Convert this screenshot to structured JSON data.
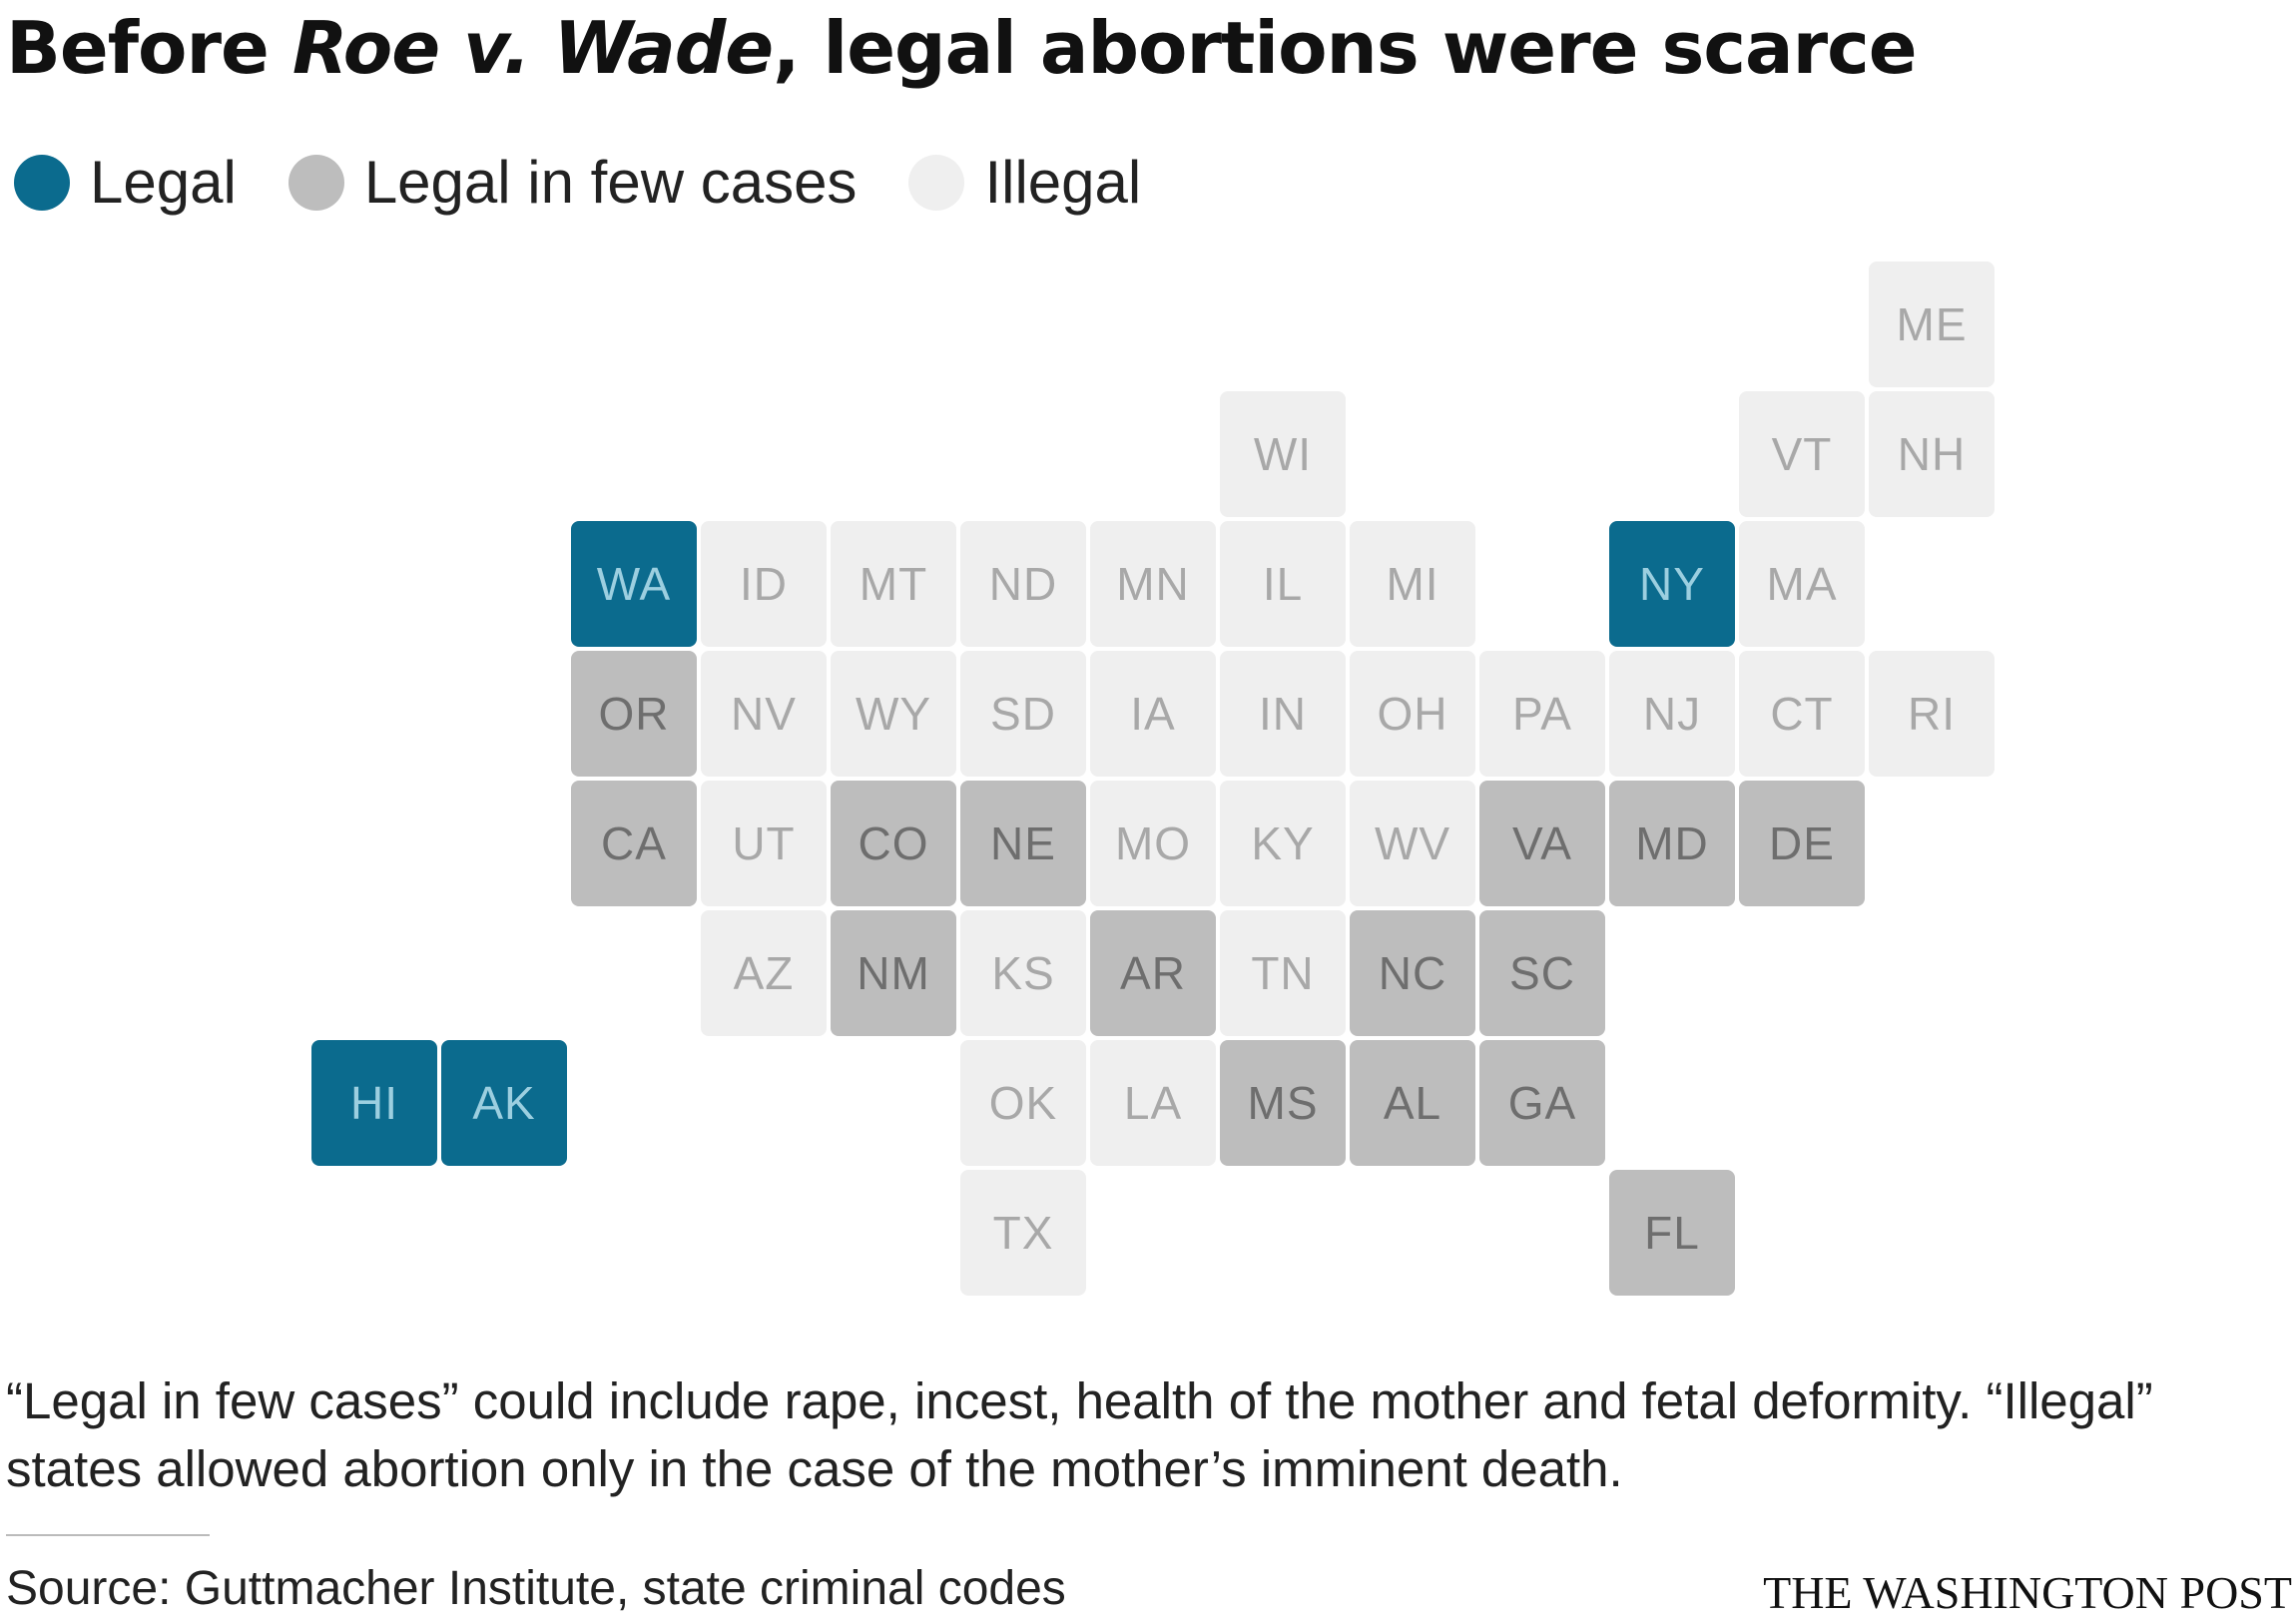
{
  "title": {
    "before": "Before ",
    "case_name": "Roe v. Wade",
    "after": ", legal abortions were scarce"
  },
  "legend": [
    {
      "key": "legal",
      "label": "Legal",
      "color": "#0b6b8e"
    },
    {
      "key": "few",
      "label": "Legal in few cases",
      "color": "#bdbdbd"
    },
    {
      "key": "illegal",
      "label": "Illegal",
      "color": "#efefef"
    }
  ],
  "status_colors": {
    "legal": {
      "fill": "#0b6b8e",
      "text": "#9ccfe0"
    },
    "few": {
      "fill": "#bdbdbd",
      "text": "#6e6e6e"
    },
    "illegal": {
      "fill": "#efefef",
      "text": "#a8a8a8"
    }
  },
  "states": [
    {
      "abbr": "ME",
      "row": 0,
      "col": 12,
      "status": "illegal"
    },
    {
      "abbr": "WI",
      "row": 1,
      "col": 7,
      "status": "illegal"
    },
    {
      "abbr": "VT",
      "row": 1,
      "col": 11,
      "status": "illegal"
    },
    {
      "abbr": "NH",
      "row": 1,
      "col": 12,
      "status": "illegal"
    },
    {
      "abbr": "WA",
      "row": 2,
      "col": 2,
      "status": "legal"
    },
    {
      "abbr": "ID",
      "row": 2,
      "col": 3,
      "status": "illegal"
    },
    {
      "abbr": "MT",
      "row": 2,
      "col": 4,
      "status": "illegal"
    },
    {
      "abbr": "ND",
      "row": 2,
      "col": 5,
      "status": "illegal"
    },
    {
      "abbr": "MN",
      "row": 2,
      "col": 6,
      "status": "illegal"
    },
    {
      "abbr": "IL",
      "row": 2,
      "col": 7,
      "status": "illegal"
    },
    {
      "abbr": "MI",
      "row": 2,
      "col": 8,
      "status": "illegal"
    },
    {
      "abbr": "NY",
      "row": 2,
      "col": 10,
      "status": "legal"
    },
    {
      "abbr": "MA",
      "row": 2,
      "col": 11,
      "status": "illegal"
    },
    {
      "abbr": "OR",
      "row": 3,
      "col": 2,
      "status": "few"
    },
    {
      "abbr": "NV",
      "row": 3,
      "col": 3,
      "status": "illegal"
    },
    {
      "abbr": "WY",
      "row": 3,
      "col": 4,
      "status": "illegal"
    },
    {
      "abbr": "SD",
      "row": 3,
      "col": 5,
      "status": "illegal"
    },
    {
      "abbr": "IA",
      "row": 3,
      "col": 6,
      "status": "illegal"
    },
    {
      "abbr": "IN",
      "row": 3,
      "col": 7,
      "status": "illegal"
    },
    {
      "abbr": "OH",
      "row": 3,
      "col": 8,
      "status": "illegal"
    },
    {
      "abbr": "PA",
      "row": 3,
      "col": 9,
      "status": "illegal"
    },
    {
      "abbr": "NJ",
      "row": 3,
      "col": 10,
      "status": "illegal"
    },
    {
      "abbr": "CT",
      "row": 3,
      "col": 11,
      "status": "illegal"
    },
    {
      "abbr": "RI",
      "row": 3,
      "col": 12,
      "status": "illegal"
    },
    {
      "abbr": "CA",
      "row": 4,
      "col": 2,
      "status": "few"
    },
    {
      "abbr": "UT",
      "row": 4,
      "col": 3,
      "status": "illegal"
    },
    {
      "abbr": "CO",
      "row": 4,
      "col": 4,
      "status": "few"
    },
    {
      "abbr": "NE",
      "row": 4,
      "col": 5,
      "status": "few"
    },
    {
      "abbr": "MO",
      "row": 4,
      "col": 6,
      "status": "illegal"
    },
    {
      "abbr": "KY",
      "row": 4,
      "col": 7,
      "status": "illegal"
    },
    {
      "abbr": "WV",
      "row": 4,
      "col": 8,
      "status": "illegal"
    },
    {
      "abbr": "VA",
      "row": 4,
      "col": 9,
      "status": "few"
    },
    {
      "abbr": "MD",
      "row": 4,
      "col": 10,
      "status": "few"
    },
    {
      "abbr": "DE",
      "row": 4,
      "col": 11,
      "status": "few"
    },
    {
      "abbr": "AZ",
      "row": 5,
      "col": 3,
      "status": "illegal"
    },
    {
      "abbr": "NM",
      "row": 5,
      "col": 4,
      "status": "few"
    },
    {
      "abbr": "KS",
      "row": 5,
      "col": 5,
      "status": "illegal"
    },
    {
      "abbr": "AR",
      "row": 5,
      "col": 6,
      "status": "few"
    },
    {
      "abbr": "TN",
      "row": 5,
      "col": 7,
      "status": "illegal"
    },
    {
      "abbr": "NC",
      "row": 5,
      "col": 8,
      "status": "few"
    },
    {
      "abbr": "SC",
      "row": 5,
      "col": 9,
      "status": "few"
    },
    {
      "abbr": "HI",
      "row": 6,
      "col": 0,
      "status": "legal"
    },
    {
      "abbr": "AK",
      "row": 6,
      "col": 1,
      "status": "legal"
    },
    {
      "abbr": "OK",
      "row": 6,
      "col": 5,
      "status": "illegal"
    },
    {
      "abbr": "LA",
      "row": 6,
      "col": 6,
      "status": "illegal"
    },
    {
      "abbr": "MS",
      "row": 6,
      "col": 7,
      "status": "few"
    },
    {
      "abbr": "AL",
      "row": 6,
      "col": 8,
      "status": "few"
    },
    {
      "abbr": "GA",
      "row": 6,
      "col": 9,
      "status": "few"
    },
    {
      "abbr": "TX",
      "row": 7,
      "col": 5,
      "status": "illegal"
    },
    {
      "abbr": "FL",
      "row": 7,
      "col": 10,
      "status": "few"
    }
  ],
  "note": "“Legal in few cases” could include rape, incest, health of the mother and fetal deformity. “Illegal” states allowed abortion only in the case of the mother’s imminent death.",
  "source": "Source: Guttmacher Institute, state criminal codes",
  "credit": "THE WASHINGTON POST"
}
